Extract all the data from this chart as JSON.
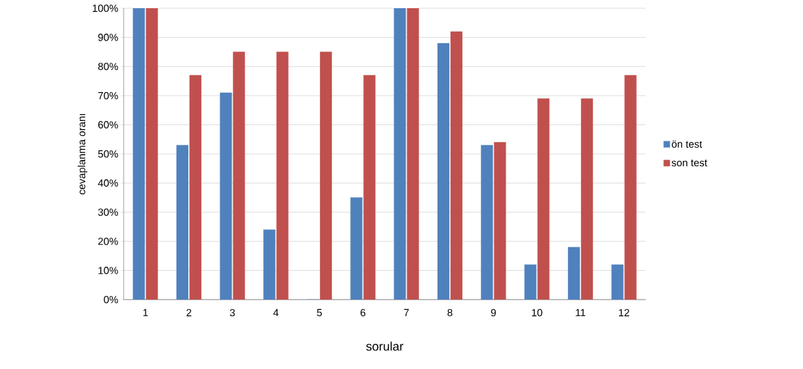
{
  "chart_data": {
    "type": "bar",
    "xlabel": "sorular",
    "ylabel": "cevaplanma oranı",
    "categories": [
      "1",
      "2",
      "3",
      "4",
      "5",
      "6",
      "7",
      "8",
      "9",
      "10",
      "11",
      "12"
    ],
    "series": [
      {
        "name": "ön test",
        "color": "#4f81bd",
        "values": [
          100,
          53,
          71,
          24,
          0,
          35,
          100,
          88,
          53,
          12,
          18,
          12
        ]
      },
      {
        "name": "son test",
        "color": "#c0504d",
        "values": [
          100,
          77,
          85,
          85,
          85,
          77,
          100,
          92,
          54,
          69,
          69,
          77
        ]
      }
    ],
    "ylim": [
      0,
      100
    ],
    "yticks": [
      {
        "value": 0,
        "label": "0%"
      },
      {
        "value": 10,
        "label": "10%"
      },
      {
        "value": 20,
        "label": "20%"
      },
      {
        "value": 30,
        "label": "30%"
      },
      {
        "value": 40,
        "label": "40%"
      },
      {
        "value": 50,
        "label": "50%"
      },
      {
        "value": 60,
        "label": "60%"
      },
      {
        "value": 70,
        "label": "70%"
      },
      {
        "value": 80,
        "label": "80%"
      },
      {
        "value": 90,
        "label": "90%"
      },
      {
        "value": 100,
        "label": "100%"
      }
    ],
    "grid": "y",
    "legend": "right"
  }
}
